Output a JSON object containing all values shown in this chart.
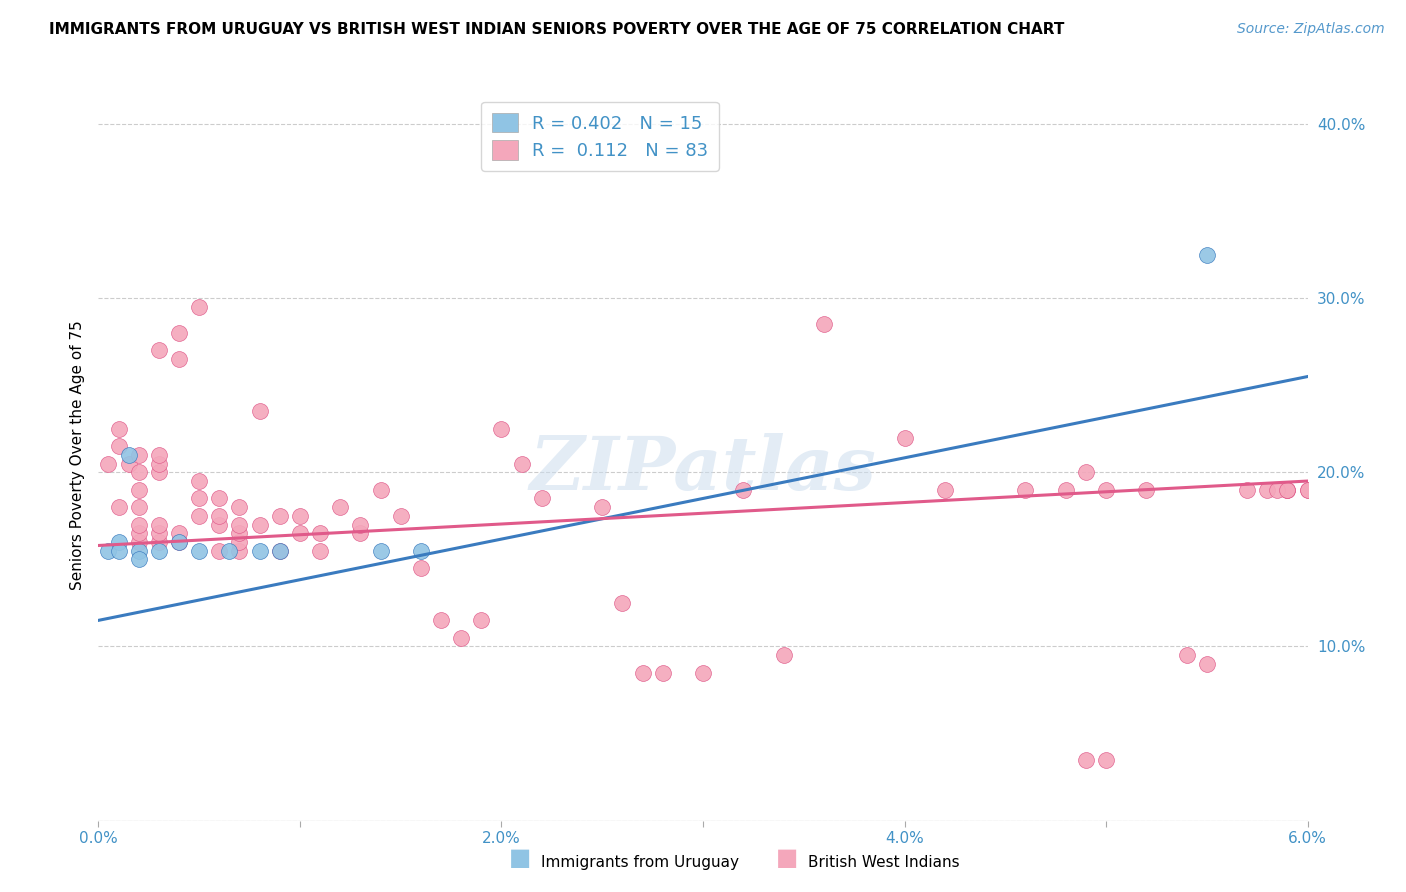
{
  "title": "IMMIGRANTS FROM URUGUAY VS BRITISH WEST INDIAN SENIORS POVERTY OVER THE AGE OF 75 CORRELATION CHART",
  "source": "Source: ZipAtlas.com",
  "ylabel": "Seniors Poverty Over the Age of 75",
  "xlim": [
    0.0,
    0.06
  ],
  "ylim": [
    0.0,
    0.42
  ],
  "xticks": [
    0.0,
    0.01,
    0.02,
    0.03,
    0.04,
    0.05,
    0.06
  ],
  "xticklabels": [
    "0.0%",
    "",
    "2.0%",
    "",
    "4.0%",
    "",
    "6.0%"
  ],
  "yticks_right": [
    0.0,
    0.1,
    0.2,
    0.3,
    0.4
  ],
  "yticklabels_right": [
    "",
    "10.0%",
    "20.0%",
    "30.0%",
    "40.0%"
  ],
  "uruguay_color": "#90c4e4",
  "bwi_color": "#f4a7bb",
  "uruguay_line_color": "#3a7bbf",
  "bwi_line_color": "#e05a8a",
  "legend_label_uruguay": "R = 0.402   N = 15",
  "legend_label_bwi": "R =  0.112   N = 83",
  "bottom_legend_uruguay": "Immigrants from Uruguay",
  "bottom_legend_bwi": "British West Indians",
  "watermark": "ZIPatlas",
  "uruguay_line_x0": 0.0,
  "uruguay_line_y0": 0.115,
  "uruguay_line_x1": 0.06,
  "uruguay_line_y1": 0.255,
  "bwi_line_x0": 0.0,
  "bwi_line_y0": 0.158,
  "bwi_line_x1": 0.06,
  "bwi_line_y1": 0.195,
  "uruguay_x": [
    0.0005,
    0.001,
    0.001,
    0.0015,
    0.002,
    0.002,
    0.003,
    0.004,
    0.005,
    0.0065,
    0.008,
    0.009,
    0.014,
    0.016,
    0.055
  ],
  "uruguay_y": [
    0.155,
    0.16,
    0.155,
    0.21,
    0.155,
    0.15,
    0.155,
    0.16,
    0.155,
    0.155,
    0.155,
    0.155,
    0.155,
    0.155,
    0.325
  ],
  "bwi_x": [
    0.0005,
    0.001,
    0.0015,
    0.001,
    0.001,
    0.002,
    0.002,
    0.002,
    0.002,
    0.002,
    0.002,
    0.002,
    0.003,
    0.003,
    0.003,
    0.003,
    0.003,
    0.003,
    0.003,
    0.004,
    0.004,
    0.004,
    0.004,
    0.005,
    0.005,
    0.005,
    0.005,
    0.006,
    0.006,
    0.006,
    0.006,
    0.007,
    0.007,
    0.007,
    0.007,
    0.007,
    0.008,
    0.008,
    0.009,
    0.009,
    0.01,
    0.01,
    0.011,
    0.011,
    0.012,
    0.013,
    0.013,
    0.014,
    0.015,
    0.016,
    0.017,
    0.018,
    0.019,
    0.02,
    0.021,
    0.022,
    0.025,
    0.026,
    0.027,
    0.028,
    0.03,
    0.032,
    0.034,
    0.036,
    0.04,
    0.042,
    0.046,
    0.048,
    0.049,
    0.049,
    0.05,
    0.05,
    0.052,
    0.054,
    0.055,
    0.057,
    0.058,
    0.059,
    0.059,
    0.06,
    0.0585,
    0.059,
    0.06
  ],
  "bwi_y": [
    0.205,
    0.18,
    0.205,
    0.215,
    0.225,
    0.16,
    0.165,
    0.17,
    0.18,
    0.19,
    0.2,
    0.21,
    0.16,
    0.165,
    0.17,
    0.2,
    0.205,
    0.21,
    0.27,
    0.16,
    0.165,
    0.28,
    0.265,
    0.175,
    0.185,
    0.195,
    0.295,
    0.155,
    0.17,
    0.175,
    0.185,
    0.155,
    0.16,
    0.165,
    0.17,
    0.18,
    0.17,
    0.235,
    0.155,
    0.175,
    0.175,
    0.165,
    0.155,
    0.165,
    0.18,
    0.165,
    0.17,
    0.19,
    0.175,
    0.145,
    0.115,
    0.105,
    0.115,
    0.225,
    0.205,
    0.185,
    0.18,
    0.125,
    0.085,
    0.085,
    0.085,
    0.19,
    0.095,
    0.285,
    0.22,
    0.19,
    0.19,
    0.19,
    0.2,
    0.035,
    0.035,
    0.19,
    0.19,
    0.095,
    0.09,
    0.19,
    0.19,
    0.19,
    0.19,
    0.19,
    0.19,
    0.19,
    0.19
  ]
}
